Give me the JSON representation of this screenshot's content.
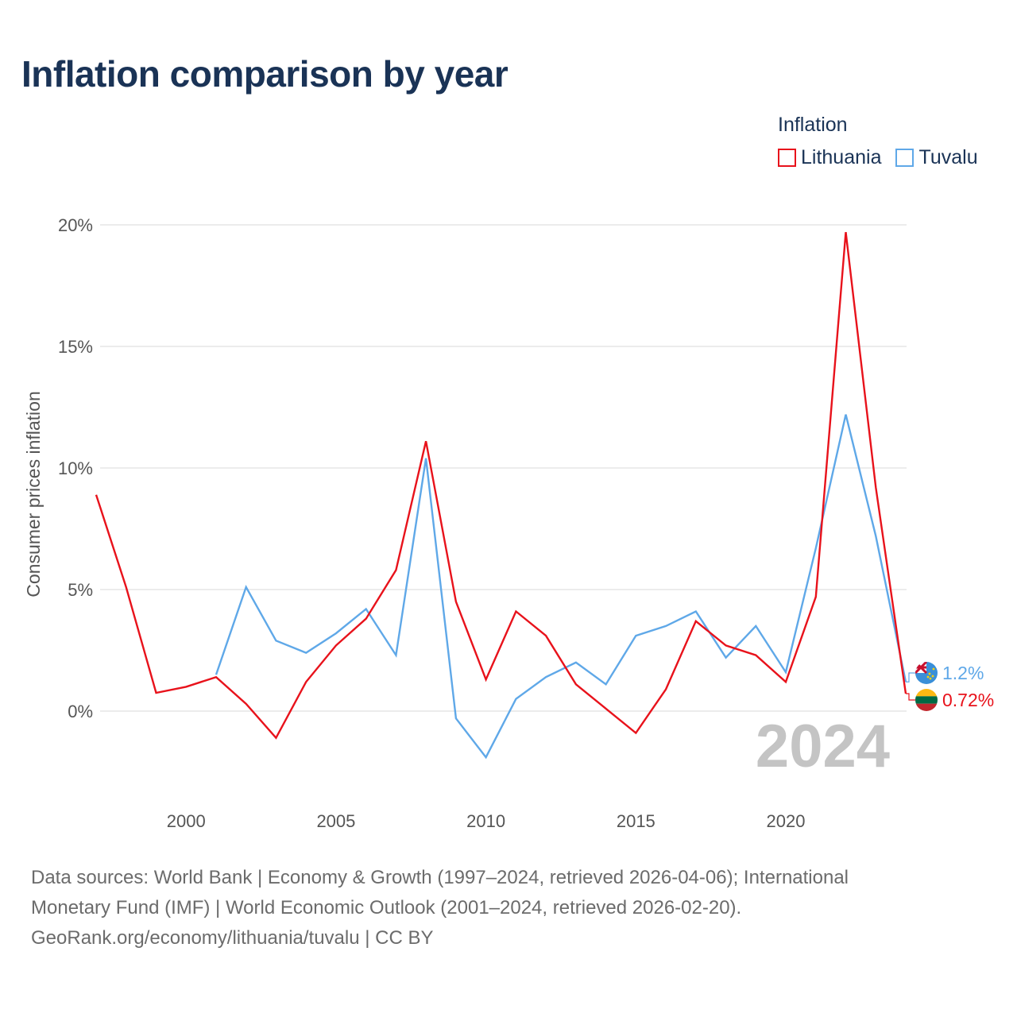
{
  "title": "Inflation comparison by year",
  "legend": {
    "title": "Inflation",
    "items": [
      {
        "name": "Lithuania",
        "color": "#e8121b"
      },
      {
        "name": "Tuvalu",
        "color": "#5fa8e8"
      }
    ]
  },
  "chart_data": {
    "type": "line",
    "title": "Inflation comparison by year",
    "xlabel": "",
    "ylabel": "Consumer prices inflation",
    "xlim": [
      1997,
      2024
    ],
    "ylim": [
      -3,
      20
    ],
    "x_ticks": [
      2000,
      2005,
      2010,
      2015,
      2020
    ],
    "y_ticks": [
      {
        "value": 0,
        "label": "0%"
      },
      {
        "value": 5,
        "label": "5%"
      },
      {
        "value": 10,
        "label": "10%"
      },
      {
        "value": 15,
        "label": "15%"
      },
      {
        "value": 20,
        "label": "20%"
      }
    ],
    "year_watermark": "2024",
    "series": [
      {
        "name": "Lithuania",
        "color": "#e8121b",
        "end_label": "0.72%",
        "flag": "lithuania-flag",
        "points": [
          [
            1997,
            8.9
          ],
          [
            1998,
            5.1
          ],
          [
            1999,
            0.75
          ],
          [
            2000,
            1.0
          ],
          [
            2001,
            1.4
          ],
          [
            2002,
            0.3
          ],
          [
            2003,
            -1.1
          ],
          [
            2004,
            1.2
          ],
          [
            2005,
            2.7
          ],
          [
            2006,
            3.8
          ],
          [
            2007,
            5.8
          ],
          [
            2008,
            11.1
          ],
          [
            2009,
            4.5
          ],
          [
            2010,
            1.3
          ],
          [
            2011,
            4.1
          ],
          [
            2012,
            3.1
          ],
          [
            2013,
            1.1
          ],
          [
            2014,
            0.1
          ],
          [
            2015,
            -0.9
          ],
          [
            2016,
            0.9
          ],
          [
            2017,
            3.7
          ],
          [
            2018,
            2.7
          ],
          [
            2019,
            2.3
          ],
          [
            2020,
            1.2
          ],
          [
            2021,
            4.7
          ],
          [
            2022,
            19.7
          ],
          [
            2023,
            9.2
          ],
          [
            2024,
            0.72
          ]
        ]
      },
      {
        "name": "Tuvalu",
        "color": "#5fa8e8",
        "end_label": "1.2%",
        "flag": "tuvalu-flag",
        "points": [
          [
            2001,
            1.5
          ],
          [
            2002,
            5.1
          ],
          [
            2003,
            2.9
          ],
          [
            2004,
            2.4
          ],
          [
            2005,
            3.2
          ],
          [
            2006,
            4.2
          ],
          [
            2007,
            2.3
          ],
          [
            2008,
            10.4
          ],
          [
            2009,
            -0.3
          ],
          [
            2010,
            -1.9
          ],
          [
            2011,
            0.5
          ],
          [
            2012,
            1.4
          ],
          [
            2013,
            2.0
          ],
          [
            2014,
            1.1
          ],
          [
            2015,
            3.1
          ],
          [
            2016,
            3.5
          ],
          [
            2017,
            4.1
          ],
          [
            2018,
            2.2
          ],
          [
            2019,
            3.5
          ],
          [
            2020,
            1.6
          ],
          [
            2021,
            6.7
          ],
          [
            2022,
            12.2
          ],
          [
            2023,
            7.2
          ],
          [
            2024,
            1.2
          ]
        ]
      }
    ]
  },
  "footer": {
    "line1": "Data sources: World Bank | Economy & Growth (1997–2024, retrieved 2026-04-06); International",
    "line2": "Monetary Fund (IMF) | World Economic Outlook (2001–2024, retrieved 2026-02-20).",
    "line3": "GeoRank.org/economy/lithuania/tuvalu | CC BY"
  }
}
